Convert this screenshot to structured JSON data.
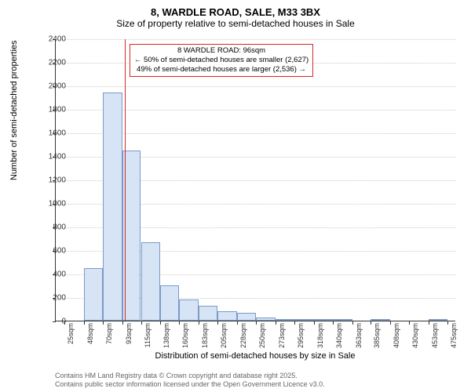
{
  "title": "8, WARDLE ROAD, SALE, M33 3BX",
  "subtitle": "Size of property relative to semi-detached houses in Sale",
  "ylabel": "Number of semi-detached properties",
  "xlabel": "Distribution of semi-detached houses by size in Sale",
  "footer_line1": "Contains HM Land Registry data © Crown copyright and database right 2025.",
  "footer_line2": "Contains public sector information licensed under the Open Government Licence v3.0.",
  "annotation_line1": "8 WARDLE ROAD: 96sqm",
  "annotation_line2": "← 50% of semi-detached houses are smaller (2,627)",
  "annotation_line3": "49% of semi-detached houses are larger (2,536) →",
  "chart": {
    "type": "histogram",
    "ylim": [
      0,
      2400
    ],
    "ytick_step": 200,
    "yticks": [
      0,
      200,
      400,
      600,
      800,
      1000,
      1200,
      1400,
      1600,
      1800,
      2000,
      2200,
      2400
    ],
    "xtick_labels": [
      "25sqm",
      "48sqm",
      "70sqm",
      "93sqm",
      "115sqm",
      "138sqm",
      "160sqm",
      "183sqm",
      "205sqm",
      "228sqm",
      "250sqm",
      "273sqm",
      "295sqm",
      "318sqm",
      "340sqm",
      "363sqm",
      "385sqm",
      "408sqm",
      "430sqm",
      "453sqm",
      "475sqm"
    ],
    "xtick_values": [
      25,
      48,
      70,
      93,
      115,
      138,
      160,
      183,
      205,
      228,
      250,
      273,
      295,
      318,
      340,
      363,
      385,
      408,
      430,
      453,
      475
    ],
    "xlim": [
      15,
      485
    ],
    "bars": [
      {
        "x0": 25,
        "x1": 48,
        "value": 0
      },
      {
        "x0": 48,
        "x1": 70,
        "value": 450
      },
      {
        "x0": 70,
        "x1": 93,
        "value": 1940
      },
      {
        "x0": 93,
        "x1": 115,
        "value": 1450
      },
      {
        "x0": 115,
        "x1": 138,
        "value": 670
      },
      {
        "x0": 138,
        "x1": 160,
        "value": 300
      },
      {
        "x0": 160,
        "x1": 183,
        "value": 180
      },
      {
        "x0": 183,
        "x1": 205,
        "value": 130
      },
      {
        "x0": 205,
        "x1": 228,
        "value": 80
      },
      {
        "x0": 228,
        "x1": 250,
        "value": 70
      },
      {
        "x0": 250,
        "x1": 273,
        "value": 30
      },
      {
        "x0": 273,
        "x1": 295,
        "value": 15
      },
      {
        "x0": 295,
        "x1": 318,
        "value": 10
      },
      {
        "x0": 318,
        "x1": 340,
        "value": 8
      },
      {
        "x0": 340,
        "x1": 363,
        "value": 5
      },
      {
        "x0": 363,
        "x1": 385,
        "value": 0
      },
      {
        "x0": 385,
        "x1": 408,
        "value": 3
      },
      {
        "x0": 408,
        "x1": 430,
        "value": 0
      },
      {
        "x0": 430,
        "x1": 453,
        "value": 0
      },
      {
        "x0": 453,
        "x1": 475,
        "value": 2
      }
    ],
    "marker_x": 96,
    "bar_fill": "#d6e4f5",
    "bar_stroke": "#7a9ac7",
    "marker_color": "#d62728",
    "grid_color": "#cccccc",
    "background_color": "#ffffff",
    "title_fontsize": 13,
    "subtitle_fontsize": 12,
    "axis_label_fontsize": 11,
    "tick_fontsize": 10,
    "annotation_fontsize": 9.5,
    "footer_fontsize": 9
  }
}
